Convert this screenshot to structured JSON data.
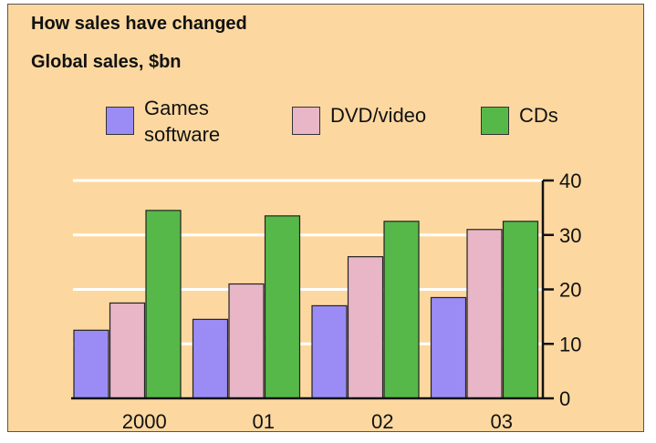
{
  "chart_data": {
    "type": "bar",
    "title": "How sales have changed",
    "subtitle": "Global sales, $bn",
    "categories": [
      "2000",
      "01",
      "02",
      "03"
    ],
    "series": [
      {
        "name": "Games software",
        "color": "#9b8cf5",
        "values": [
          12.5,
          14.5,
          17,
          18.5
        ]
      },
      {
        "name": "DVD/video",
        "color": "#e8b6c6",
        "values": [
          17.5,
          21,
          26,
          31
        ]
      },
      {
        "name": "CDs",
        "color": "#56b848",
        "values": [
          34.5,
          33.5,
          32.5,
          32.5
        ]
      }
    ],
    "ylim": [
      0,
      40
    ],
    "yticks": [
      "0",
      "10",
      "20",
      "30",
      "40"
    ],
    "y_axis_side": "right",
    "grid": true,
    "gridline_color": "#ffffff",
    "legend_position": "top"
  }
}
